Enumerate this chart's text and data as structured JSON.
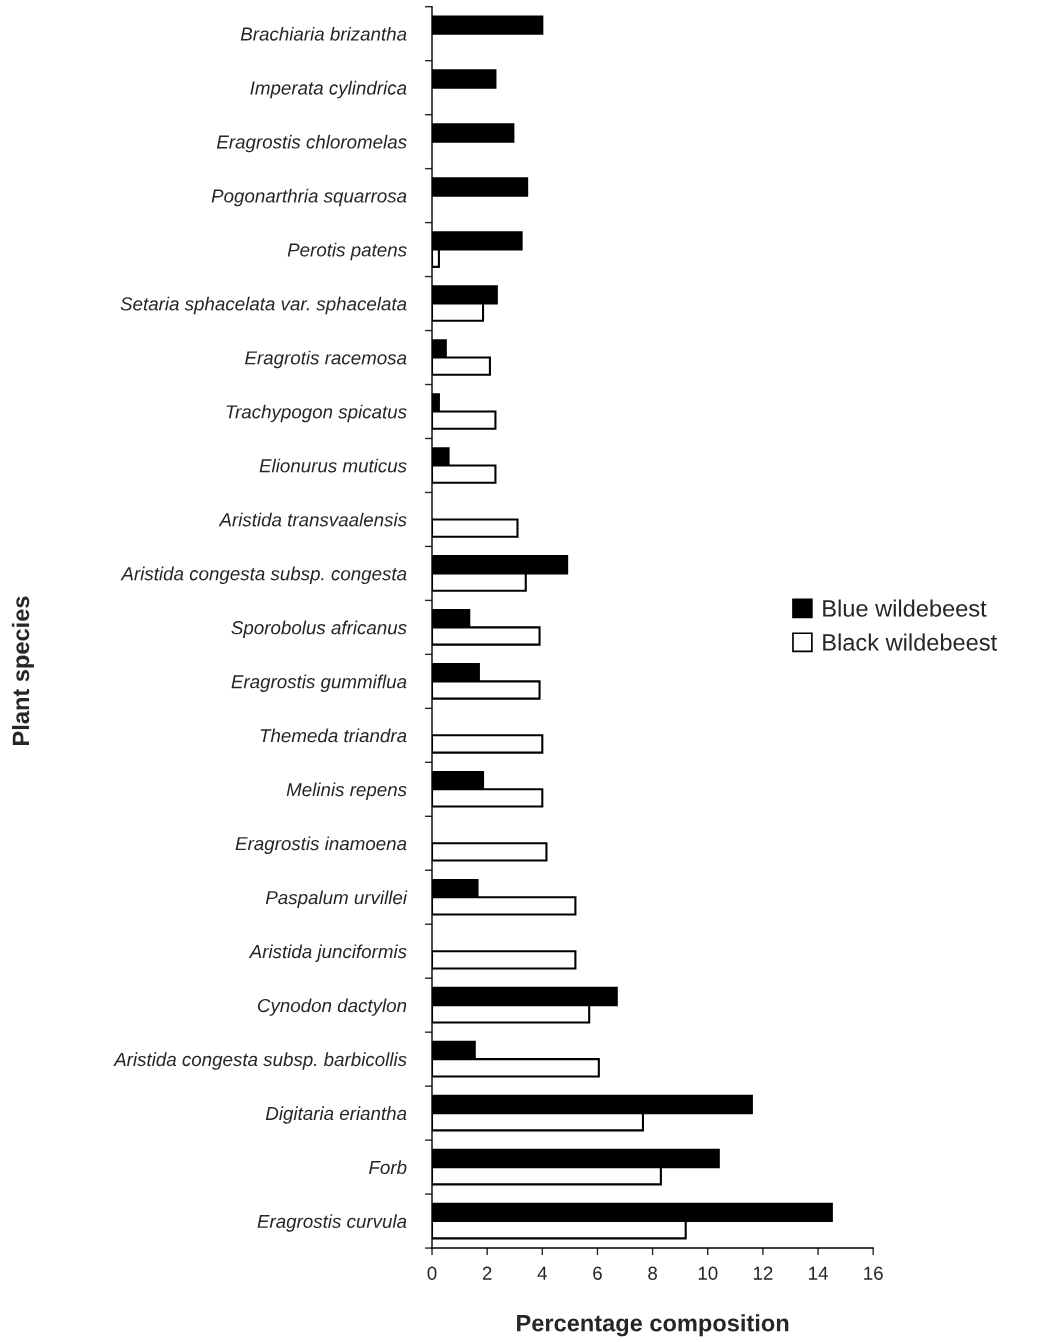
{
  "chart_data": {
    "type": "bar",
    "orientation": "horizontal",
    "xlabel": "Percentage composition",
    "ylabel": "Plant species",
    "categories": [
      "Brachiaria brizantha",
      "Imperata cylindrica",
      "Eragrostis chloromelas",
      "Pogonarthria squarrosa",
      "Perotis patens",
      "Setaria sphacelata var. sphacelata",
      "Eragrotis racemosa",
      "Trachypogon spicatus",
      "Elionurus muticus",
      "Aristida transvaalensis",
      "Aristida congesta subsp. congesta",
      "Sporobolus africanus",
      "Eragrostis gummiflua",
      "Themeda triandra",
      "Melinis repens",
      "Eragrostis inamoena",
      "Paspalum urvillei",
      "Aristida junciformis",
      "Cynodon dactylon",
      "Aristida congesta subsp. barbicollis",
      "Digitaria eriantha",
      "Forb",
      "Eragrostis curvula"
    ],
    "series": [
      {
        "name": "Blue wildebeest",
        "color": "#000000",
        "values": [
          4.0,
          2.3,
          2.95,
          3.45,
          3.25,
          2.35,
          0.5,
          0.25,
          0.6,
          null,
          4.9,
          1.35,
          1.7,
          null,
          1.85,
          null,
          1.65,
          null,
          6.7,
          1.55,
          11.6,
          10.4,
          14.5
        ]
      },
      {
        "name": "Black wildebeest",
        "color": "#ffffff",
        "values": [
          null,
          null,
          null,
          null,
          0.25,
          1.85,
          2.1,
          2.3,
          2.3,
          3.1,
          3.4,
          3.9,
          3.9,
          4.0,
          4.0,
          4.15,
          5.2,
          5.2,
          5.7,
          6.05,
          7.65,
          8.3,
          9.2
        ]
      }
    ],
    "xlim": [
      0,
      16
    ],
    "xticks": [
      0,
      2,
      4,
      6,
      8,
      10,
      12,
      14,
      16
    ],
    "legend": "right",
    "grid": false
  }
}
